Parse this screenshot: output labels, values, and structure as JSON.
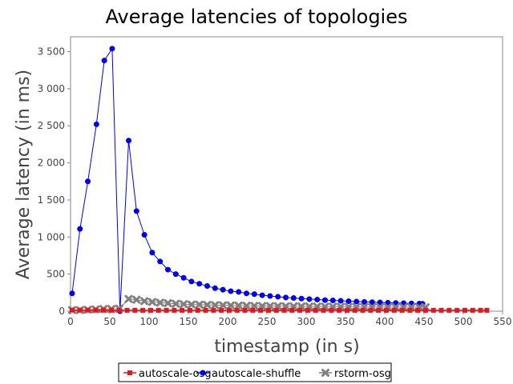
{
  "chart_data": {
    "type": "line",
    "title": "Average latencies of topologies",
    "xlabel": "timestamp (in s)",
    "ylabel": "Average latency (in ms)",
    "xlim": [
      0,
      550
    ],
    "ylim": [
      0,
      3700
    ],
    "xticks": [
      0,
      50,
      100,
      150,
      200,
      250,
      300,
      350,
      400,
      450,
      500,
      550
    ],
    "yticks": [
      0,
      500,
      1000,
      1500,
      2000,
      2500,
      3000,
      3500
    ],
    "xtick_labels": [
      "0",
      "50",
      "100",
      "150",
      "200",
      "250",
      "300",
      "350",
      "400",
      "450",
      "500",
      "550"
    ],
    "ytick_labels": [
      "0",
      "500",
      "1 000",
      "1 500",
      "2 000",
      "2 500",
      "3 000",
      "3 500"
    ],
    "grid": false,
    "legend_position": "bottom-center",
    "series": [
      {
        "name": "autoscale-osg",
        "color": "#e8141c",
        "marker": "square",
        "x": [
          2,
          12,
          22,
          32,
          42,
          52,
          62,
          72,
          82,
          92,
          102,
          112,
          122,
          132,
          142,
          152,
          162,
          172,
          182,
          192,
          202,
          212,
          222,
          232,
          242,
          252,
          262,
          272,
          282,
          292,
          302,
          312,
          322,
          332,
          342,
          352,
          362,
          372,
          382,
          392,
          402,
          412,
          422,
          432,
          442,
          452,
          462,
          472,
          482,
          492,
          502,
          512,
          522,
          530
        ],
        "y": [
          15,
          14,
          14,
          13,
          13,
          13,
          12,
          12,
          12,
          12,
          12,
          12,
          12,
          12,
          12,
          12,
          12,
          12,
          12,
          12,
          12,
          12,
          12,
          12,
          12,
          12,
          12,
          12,
          12,
          12,
          12,
          12,
          12,
          12,
          12,
          12,
          12,
          12,
          12,
          12,
          12,
          12,
          12,
          12,
          12,
          12,
          12,
          12,
          12,
          12,
          12,
          12,
          12,
          12
        ]
      },
      {
        "name": "autoscale-shuffle",
        "color": "#0000ee",
        "marker": "circle",
        "x": [
          2,
          12,
          22,
          33,
          43,
          53,
          63,
          74,
          84,
          94,
          104,
          114,
          124,
          134,
          144,
          154,
          164,
          174,
          184,
          194,
          204,
          214,
          224,
          234,
          244,
          254,
          264,
          274,
          284,
          294,
          304,
          314,
          324,
          334,
          344,
          354,
          364,
          374,
          384,
          394,
          404,
          414,
          424,
          434,
          444,
          448
        ],
        "y": [
          240,
          1110,
          1750,
          2520,
          3380,
          3540,
          0,
          2300,
          1350,
          1030,
          790,
          670,
          560,
          500,
          450,
          400,
          370,
          340,
          310,
          290,
          270,
          260,
          240,
          230,
          215,
          205,
          195,
          185,
          178,
          170,
          163,
          157,
          150,
          145,
          140,
          135,
          130,
          126,
          122,
          118,
          114,
          111,
          108,
          105,
          102,
          100
        ]
      },
      {
        "name": "rstorm-osg",
        "color": "#808080",
        "marker": "x",
        "x": [
          2,
          12,
          22,
          32,
          42,
          52,
          62,
          74,
          84,
          94,
          104,
          114,
          124,
          134,
          144,
          154,
          164,
          174,
          184,
          194,
          204,
          214,
          224,
          234,
          244,
          254,
          264,
          274,
          284,
          294,
          304,
          314,
          324,
          334,
          344,
          354,
          364,
          374,
          384,
          394,
          404,
          414,
          424,
          434,
          444,
          452
        ],
        "y": [
          15,
          15,
          20,
          25,
          30,
          30,
          35,
          165,
          155,
          135,
          125,
          115,
          108,
          100,
          95,
          90,
          88,
          85,
          82,
          80,
          78,
          76,
          74,
          72,
          70,
          69,
          68,
          67,
          66,
          65,
          64,
          63,
          62,
          61,
          60,
          59,
          58,
          57,
          56,
          56,
          55,
          55,
          54,
          54,
          53,
          53
        ]
      }
    ]
  }
}
